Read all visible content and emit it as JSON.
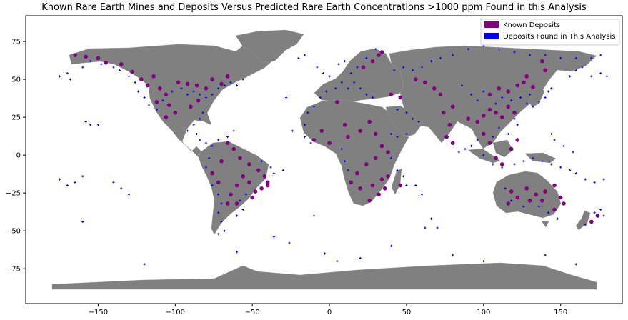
{
  "title": "Known Rare Earth Mines and Deposits Versus Predicted Rare Earth Concentrations >1000 ppm Found in this Analysis",
  "colors": {
    "land": "#808080",
    "known": "#800080",
    "found": "#0000ee",
    "axis": "#000000"
  },
  "chart_data": {
    "type": "scatter",
    "xlim": [
      -197,
      190
    ],
    "ylim": [
      -98,
      92
    ],
    "x_ticks": [
      "−150",
      "−100",
      "−50",
      "0",
      "50",
      "100",
      "150"
    ],
    "y_ticks": [
      "75",
      "50",
      "25",
      "0",
      "−25",
      "−50",
      "−75"
    ],
    "legend_position": "top-right",
    "series": [
      {
        "name": "Known Deposits",
        "marker": "circle",
        "points": [
          [
            -165,
            66
          ],
          [
            -158,
            65
          ],
          [
            -150,
            64
          ],
          [
            -145,
            61
          ],
          [
            -135,
            60
          ],
          [
            -128,
            55
          ],
          [
            -122,
            50
          ],
          [
            -118,
            46
          ],
          [
            -114,
            52
          ],
          [
            -110,
            44
          ],
          [
            -106,
            40
          ],
          [
            -112,
            35
          ],
          [
            -104,
            33
          ],
          [
            -98,
            48
          ],
          [
            -92,
            47
          ],
          [
            -86,
            46
          ],
          [
            -80,
            44
          ],
          [
            -76,
            50
          ],
          [
            -70,
            47
          ],
          [
            -66,
            52
          ],
          [
            -85,
            36
          ],
          [
            -90,
            32
          ],
          [
            -100,
            28
          ],
          [
            -106,
            25
          ],
          [
            -66,
            8
          ],
          [
            -62,
            4
          ],
          [
            -58,
            -2
          ],
          [
            -52,
            -6
          ],
          [
            -46,
            -10
          ],
          [
            -42,
            -14
          ],
          [
            -40,
            -18
          ],
          [
            -44,
            -22
          ],
          [
            -48,
            -24
          ],
          [
            -52,
            -18
          ],
          [
            -56,
            -14
          ],
          [
            -60,
            -20
          ],
          [
            -64,
            -26
          ],
          [
            -66,
            -32
          ],
          [
            -50,
            -28
          ],
          [
            -40,
            -20
          ],
          [
            -70,
            -4
          ],
          [
            -76,
            -12
          ],
          [
            -72,
            -18
          ],
          [
            -60,
            -32
          ],
          [
            5,
            35
          ],
          [
            10,
            20
          ],
          [
            -5,
            16
          ],
          [
            -10,
            10
          ],
          [
            0,
            8
          ],
          [
            12,
            12
          ],
          [
            20,
            16
          ],
          [
            26,
            22
          ],
          [
            30,
            14
          ],
          [
            34,
            6
          ],
          [
            38,
            2
          ],
          [
            30,
            -2
          ],
          [
            24,
            -6
          ],
          [
            18,
            -12
          ],
          [
            14,
            -18
          ],
          [
            20,
            -22
          ],
          [
            28,
            -20
          ],
          [
            34,
            -16
          ],
          [
            38,
            -14
          ],
          [
            32,
            -26
          ],
          [
            26,
            -30
          ],
          [
            36,
            -22
          ],
          [
            46,
            -20
          ],
          [
            22,
            58
          ],
          [
            28,
            62
          ],
          [
            32,
            66
          ],
          [
            34,
            68
          ],
          [
            40,
            40
          ],
          [
            46,
            38
          ],
          [
            56,
            50
          ],
          [
            62,
            48
          ],
          [
            68,
            44
          ],
          [
            72,
            40
          ],
          [
            80,
            32
          ],
          [
            74,
            28
          ],
          [
            78,
            20
          ],
          [
            76,
            12
          ],
          [
            80,
            8
          ],
          [
            90,
            24
          ],
          [
            96,
            22
          ],
          [
            100,
            26
          ],
          [
            104,
            30
          ],
          [
            108,
            28
          ],
          [
            112,
            25
          ],
          [
            116,
            32
          ],
          [
            120,
            28
          ],
          [
            104,
            40
          ],
          [
            110,
            44
          ],
          [
            116,
            42
          ],
          [
            122,
            46
          ],
          [
            126,
            48
          ],
          [
            132,
            45
          ],
          [
            128,
            52
          ],
          [
            140,
            56
          ],
          [
            138,
            62
          ],
          [
            100,
            14
          ],
          [
            104,
            8
          ],
          [
            108,
            -2
          ],
          [
            112,
            -6
          ],
          [
            118,
            4
          ],
          [
            122,
            10
          ],
          [
            118,
            -24
          ],
          [
            122,
            -28
          ],
          [
            128,
            -22
          ],
          [
            134,
            -26
          ],
          [
            140,
            -24
          ],
          [
            146,
            -20
          ],
          [
            150,
            -28
          ],
          [
            152,
            -32
          ],
          [
            146,
            -36
          ],
          [
            138,
            -30
          ],
          [
            130,
            -30
          ],
          [
            116,
            -32
          ],
          [
            174,
            -40
          ],
          [
            170,
            -44
          ]
        ]
      },
      {
        "name": "Deposits Found in This Analysis",
        "marker": "plus",
        "points": [
          [
            -175,
            52
          ],
          [
            -170,
            54
          ],
          [
            -168,
            50
          ],
          [
            -160,
            58
          ],
          [
            -155,
            62
          ],
          [
            -148,
            60
          ],
          [
            -140,
            58
          ],
          [
            -136,
            56
          ],
          [
            -130,
            52
          ],
          [
            -126,
            48
          ],
          [
            -124,
            42
          ],
          [
            -120,
            38
          ],
          [
            -117,
            33
          ],
          [
            -112,
            30
          ],
          [
            -108,
            36
          ],
          [
            -102,
            42
          ],
          [
            -96,
            44
          ],
          [
            -92,
            40
          ],
          [
            -88,
            42
          ],
          [
            -84,
            40
          ],
          [
            -80,
            38
          ],
          [
            -76,
            40
          ],
          [
            -72,
            44
          ],
          [
            -68,
            46
          ],
          [
            -64,
            48
          ],
          [
            -60,
            46
          ],
          [
            -56,
            50
          ],
          [
            -82,
            28
          ],
          [
            -84,
            24
          ],
          [
            -88,
            20
          ],
          [
            -92,
            16
          ],
          [
            -86,
            14
          ],
          [
            -84,
            10
          ],
          [
            -80,
            8
          ],
          [
            -76,
            6
          ],
          [
            -72,
            10
          ],
          [
            -66,
            12
          ],
          [
            -62,
            16
          ],
          [
            -150,
            20
          ],
          [
            -155,
            20
          ],
          [
            -158,
            22
          ],
          [
            -160,
            -14
          ],
          [
            -165,
            -18
          ],
          [
            -170,
            -20
          ],
          [
            -175,
            -16
          ],
          [
            -160,
            -44
          ],
          [
            -140,
            -18
          ],
          [
            -135,
            -22
          ],
          [
            -130,
            -26
          ],
          [
            -78,
            -2
          ],
          [
            -80,
            -8
          ],
          [
            -76,
            -20
          ],
          [
            -72,
            -26
          ],
          [
            -70,
            -32
          ],
          [
            -72,
            -38
          ],
          [
            -70,
            -44
          ],
          [
            -68,
            -50
          ],
          [
            -72,
            -52
          ],
          [
            -60,
            -40
          ],
          [
            -56,
            -36
          ],
          [
            -58,
            -30
          ],
          [
            -54,
            -26
          ],
          [
            -44,
            -4
          ],
          [
            -38,
            -8
          ],
          [
            -36,
            -12
          ],
          [
            -12,
            8
          ],
          [
            -16,
            12
          ],
          [
            -16,
            20
          ],
          [
            -14,
            28
          ],
          [
            -10,
            32
          ],
          [
            -6,
            38
          ],
          [
            -2,
            42
          ],
          [
            4,
            44
          ],
          [
            8,
            48
          ],
          [
            12,
            44
          ],
          [
            16,
            48
          ],
          [
            20,
            44
          ],
          [
            24,
            40
          ],
          [
            28,
            38
          ],
          [
            14,
            54
          ],
          [
            18,
            58
          ],
          [
            24,
            64
          ],
          [
            30,
            70
          ],
          [
            -20,
            64
          ],
          [
            -16,
            66
          ],
          [
            -8,
            58
          ],
          [
            -4,
            54
          ],
          [
            0,
            52
          ],
          [
            6,
            60
          ],
          [
            10,
            62
          ],
          [
            42,
            56
          ],
          [
            48,
            58
          ],
          [
            54,
            56
          ],
          [
            60,
            58
          ],
          [
            66,
            62
          ],
          [
            72,
            64
          ],
          [
            80,
            66
          ],
          [
            90,
            70
          ],
          [
            100,
            72
          ],
          [
            110,
            70
          ],
          [
            120,
            68
          ],
          [
            130,
            66
          ],
          [
            140,
            66
          ],
          [
            150,
            64
          ],
          [
            160,
            64
          ],
          [
            170,
            64
          ],
          [
            176,
            66
          ],
          [
            44,
            30
          ],
          [
            50,
            28
          ],
          [
            54,
            24
          ],
          [
            58,
            22
          ],
          [
            50,
            14
          ],
          [
            44,
            12
          ],
          [
            40,
            14
          ],
          [
            8,
            4
          ],
          [
            10,
            -4
          ],
          [
            12,
            -10
          ],
          [
            40,
            -2
          ],
          [
            44,
            -10
          ],
          [
            48,
            -14
          ],
          [
            50,
            -20
          ],
          [
            56,
            -20
          ],
          [
            60,
            -26
          ],
          [
            62,
            -48
          ],
          [
            70,
            -48
          ],
          [
            66,
            -42
          ],
          [
            -36,
            -54
          ],
          [
            -26,
            -58
          ],
          [
            86,
            46
          ],
          [
            92,
            40
          ],
          [
            96,
            36
          ],
          [
            100,
            42
          ],
          [
            108,
            34
          ],
          [
            112,
            38
          ],
          [
            118,
            36
          ],
          [
            124,
            38
          ],
          [
            128,
            34
          ],
          [
            132,
            32
          ],
          [
            136,
            35
          ],
          [
            140,
            38
          ],
          [
            142,
            42
          ],
          [
            144,
            44
          ],
          [
            130,
            40
          ],
          [
            120,
            24
          ],
          [
            122,
            20
          ],
          [
            116,
            14
          ],
          [
            110,
            18
          ],
          [
            106,
            12
          ],
          [
            96,
            10
          ],
          [
            92,
            6
          ],
          [
            88,
            4
          ],
          [
            84,
            2
          ],
          [
            100,
            0
          ],
          [
            106,
            -6
          ],
          [
            112,
            -8
          ],
          [
            120,
            -6
          ],
          [
            126,
            -4
          ],
          [
            132,
            -2
          ],
          [
            138,
            -4
          ],
          [
            144,
            -6
          ],
          [
            150,
            -8
          ],
          [
            156,
            -10
          ],
          [
            160,
            -12
          ],
          [
            166,
            -16
          ],
          [
            172,
            -18
          ],
          [
            178,
            -16
          ],
          [
            114,
            -22
          ],
          [
            118,
            -30
          ],
          [
            126,
            -34
          ],
          [
            136,
            -34
          ],
          [
            142,
            -38
          ],
          [
            148,
            -42
          ],
          [
            166,
            -46
          ],
          [
            172,
            -38
          ],
          [
            176,
            -36
          ],
          [
            178,
            -40
          ],
          [
            156,
            52
          ],
          [
            160,
            56
          ],
          [
            164,
            58
          ],
          [
            170,
            52
          ],
          [
            176,
            54
          ],
          [
            180,
            52
          ],
          [
            144,
            14
          ],
          [
            146,
            10
          ],
          [
            152,
            6
          ],
          [
            158,
            2
          ],
          [
            -28,
            38
          ],
          [
            -24,
            16
          ],
          [
            -30,
            -10
          ],
          [
            -10,
            -40
          ],
          [
            -3,
            -65
          ],
          [
            5,
            -70
          ],
          [
            20,
            -68
          ],
          [
            40,
            -60
          ],
          [
            80,
            -66
          ],
          [
            100,
            -70
          ],
          [
            140,
            -66
          ],
          [
            160,
            -72
          ],
          [
            -120,
            -72
          ],
          [
            -60,
            -64
          ]
        ]
      }
    ]
  }
}
